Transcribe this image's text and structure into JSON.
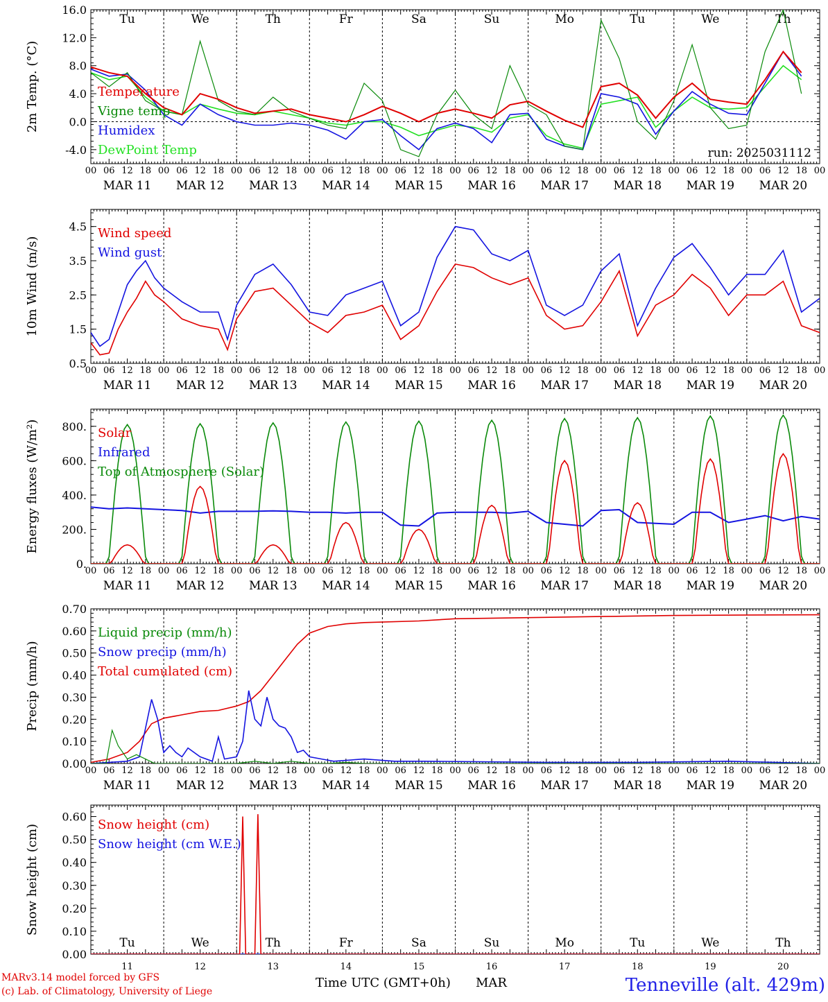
{
  "footer": {
    "model": "MARv3.14 model forced by GFS",
    "lab": "(c) Lab. of Climatology, University of Liege",
    "xlabel": "Time UTC (GMT+0h)",
    "month": "MAR",
    "station": "Tenneville (alt. 429m)"
  },
  "colors": {
    "red": "#e00000",
    "green": "#0a8a0a",
    "blue": "#1414e0",
    "lightgreen": "#22e022",
    "weekend": "#e00000"
  },
  "days": {
    "weekdays": [
      "Tu",
      "We",
      "Th",
      "Fr",
      "Sa",
      "Su",
      "Mo",
      "Tu",
      "We",
      "Th"
    ],
    "dates": [
      "MAR 11",
      "MAR 12",
      "MAR 13",
      "MAR 14",
      "MAR 15",
      "MAR 16",
      "MAR 17",
      "MAR 18",
      "MAR 19",
      "MAR 20"
    ],
    "numbers": [
      "11",
      "12",
      "13",
      "14",
      "15",
      "16",
      "17",
      "18",
      "19",
      "20"
    ],
    "weekend_days": [
      "Sa",
      "Su"
    ],
    "hour_ticks": [
      "00",
      "06",
      "12",
      "18"
    ],
    "final_tick": "00"
  },
  "chart_data": [
    {
      "id": "temp",
      "type": "line",
      "ylabel": "2m Temp. (°C)",
      "ylim": [
        -6,
        16
      ],
      "yticks": [
        -4,
        0,
        4,
        8,
        12,
        16
      ],
      "ytick_labels": [
        "-4.0",
        "0.0",
        "4.0",
        "8.0",
        "12.0",
        "16.0"
      ],
      "zero_line": true,
      "annotation": "run: 2025031112",
      "x_unit": "hours since MAR 11 00 UTC",
      "series": [
        {
          "name": "Temperature",
          "color": "red",
          "x": [
            0,
            6,
            12,
            18,
            24,
            30,
            36,
            42,
            48,
            54,
            60,
            66,
            72,
            78,
            84,
            90,
            96,
            102,
            108,
            114,
            120,
            126,
            132,
            138,
            144,
            150,
            156,
            162,
            168,
            174,
            180,
            186,
            192,
            198,
            204,
            210,
            216,
            222,
            228,
            234
          ],
          "y": [
            7.8,
            7.0,
            6.5,
            4.0,
            2.0,
            1.0,
            4.0,
            3.2,
            2.0,
            1.2,
            1.5,
            1.8,
            1.0,
            0.5,
            0.0,
            1.0,
            2.2,
            1.2,
            0.0,
            1.2,
            1.8,
            1.2,
            0.5,
            2.4,
            2.9,
            1.5,
            0.2,
            -0.8,
            5.0,
            5.5,
            3.8,
            0.5,
            3.5,
            5.5,
            3.2,
            2.8,
            2.5,
            6.0,
            10.0,
            7.0
          ]
        },
        {
          "name": "Vigne temp",
          "color": "green",
          "x": [
            0,
            6,
            12,
            18,
            24,
            30,
            36,
            42,
            48,
            54,
            60,
            66,
            72,
            78,
            84,
            90,
            96,
            102,
            108,
            114,
            120,
            126,
            132,
            138,
            144,
            150,
            156,
            162,
            168,
            174,
            180,
            186,
            192,
            198,
            204,
            210,
            216,
            222,
            228,
            234
          ],
          "y": [
            7.0,
            5.0,
            7.0,
            3.0,
            1.5,
            1.0,
            11.5,
            3.0,
            1.5,
            1.0,
            3.5,
            1.5,
            0.5,
            -0.5,
            -1.0,
            5.5,
            3.0,
            -4.0,
            -5.0,
            1.0,
            4.5,
            1.0,
            -1.0,
            8.0,
            2.5,
            1.0,
            -3.5,
            -4.0,
            14.5,
            9.0,
            0.0,
            -2.5,
            3.0,
            11.0,
            2.0,
            -1.0,
            -0.5,
            10.0,
            16.0,
            4.0
          ]
        },
        {
          "name": "Humidex",
          "color": "blue",
          "x": [
            0,
            6,
            12,
            18,
            24,
            30,
            36,
            42,
            48,
            54,
            60,
            66,
            72,
            78,
            84,
            90,
            96,
            102,
            108,
            114,
            120,
            126,
            132,
            138,
            144,
            150,
            156,
            162,
            168,
            174,
            180,
            186,
            192,
            198,
            204,
            210,
            216,
            222,
            228,
            234
          ],
          "y": [
            7.5,
            6.5,
            6.8,
            4.5,
            1.0,
            -0.5,
            2.5,
            1.0,
            0.0,
            -0.5,
            -0.5,
            -0.2,
            -0.5,
            -1.2,
            -2.5,
            0.0,
            0.3,
            -2.0,
            -4.0,
            -1.0,
            -0.2,
            -1.0,
            -3.0,
            1.0,
            1.2,
            -2.5,
            -3.5,
            -4.0,
            4.0,
            3.5,
            2.5,
            -1.8,
            1.5,
            4.3,
            2.5,
            1.2,
            1.0,
            5.5,
            10.0,
            6.5
          ]
        },
        {
          "name": "DewPoint Temp",
          "color": "lightgreen",
          "x": [
            0,
            6,
            12,
            18,
            24,
            30,
            36,
            42,
            48,
            54,
            60,
            66,
            72,
            78,
            84,
            90,
            96,
            102,
            108,
            114,
            120,
            126,
            132,
            138,
            144,
            150,
            156,
            162,
            168,
            174,
            180,
            186,
            192,
            198,
            204,
            210,
            216,
            222,
            228,
            234
          ],
          "y": [
            7.0,
            6.0,
            6.5,
            3.5,
            1.5,
            1.0,
            2.5,
            1.8,
            1.2,
            1.0,
            1.5,
            1.0,
            0.5,
            -0.2,
            -0.5,
            0.0,
            0.0,
            -0.8,
            -2.0,
            -1.2,
            -0.5,
            -0.8,
            -1.5,
            0.5,
            1.0,
            -2.0,
            -3.2,
            -3.8,
            2.5,
            3.0,
            3.5,
            -0.8,
            1.5,
            3.5,
            2.0,
            1.8,
            2.0,
            5.0,
            8.0,
            6.0
          ]
        }
      ]
    },
    {
      "id": "wind",
      "type": "line",
      "ylabel": "10m Wind (m/s)",
      "ylim": [
        0.5,
        5.0
      ],
      "yticks": [
        0.5,
        1.5,
        2.5,
        3.5,
        4.5
      ],
      "ytick_labels": [
        "0.5",
        "1.5",
        "2.5",
        "3.5",
        "4.5"
      ],
      "x_unit": "hours since MAR 11 00 UTC",
      "series": [
        {
          "name": "Wind speed",
          "color": "red",
          "x": [
            0,
            3,
            6,
            9,
            12,
            15,
            18,
            21,
            24,
            30,
            36,
            42,
            45,
            48,
            54,
            60,
            66,
            72,
            78,
            84,
            90,
            96,
            102,
            108,
            114,
            120,
            126,
            132,
            138,
            144,
            150,
            156,
            162,
            168,
            174,
            180,
            186,
            192,
            198,
            204,
            210,
            216,
            222,
            228,
            234,
            240
          ],
          "y": [
            1.1,
            0.75,
            0.8,
            1.5,
            2.0,
            2.4,
            2.9,
            2.5,
            2.3,
            1.8,
            1.6,
            1.5,
            0.9,
            1.8,
            2.6,
            2.7,
            2.2,
            1.7,
            1.4,
            1.9,
            2.0,
            2.2,
            1.2,
            1.6,
            2.6,
            3.4,
            3.3,
            3.0,
            2.8,
            3.0,
            1.9,
            1.5,
            1.6,
            2.3,
            3.2,
            1.3,
            2.2,
            2.5,
            3.1,
            2.7,
            1.9,
            2.5,
            2.5,
            2.9,
            1.6,
            1.4
          ]
        },
        {
          "name": "Wind gust",
          "color": "blue",
          "x": [
            0,
            3,
            6,
            9,
            12,
            15,
            18,
            21,
            24,
            30,
            36,
            42,
            45,
            48,
            54,
            60,
            66,
            72,
            78,
            84,
            90,
            96,
            102,
            108,
            114,
            120,
            126,
            132,
            138,
            144,
            150,
            156,
            162,
            168,
            174,
            180,
            186,
            192,
            198,
            204,
            210,
            216,
            222,
            228,
            234,
            240
          ],
          "y": [
            1.4,
            1.0,
            1.2,
            2.0,
            2.8,
            3.2,
            3.5,
            3.0,
            2.7,
            2.3,
            2.0,
            2.0,
            1.2,
            2.2,
            3.1,
            3.4,
            2.8,
            2.0,
            1.9,
            2.5,
            2.7,
            2.9,
            1.6,
            2.0,
            3.6,
            4.5,
            4.4,
            3.7,
            3.5,
            3.8,
            2.2,
            1.9,
            2.2,
            3.2,
            3.7,
            1.6,
            2.7,
            3.6,
            4.0,
            3.3,
            2.5,
            3.1,
            3.1,
            3.8,
            2.0,
            2.4
          ]
        }
      ]
    },
    {
      "id": "energy",
      "type": "line",
      "ylabel": "Energy fluxes (W/m²)",
      "ylim": [
        0,
        900
      ],
      "yticks": [
        0,
        200,
        400,
        600,
        800
      ],
      "ytick_labels": [
        "0.",
        "200.",
        "400.",
        "600.",
        "800."
      ],
      "x_unit": "hours since MAR 11 00 UTC",
      "series": [
        {
          "name": "Solar",
          "color": "red",
          "solar_peaks": [
            110,
            450,
            110,
            240,
            200,
            340,
            600,
            355,
            610,
            640
          ]
        },
        {
          "name": "Infrared",
          "color": "blue",
          "x": [
            0,
            6,
            12,
            18,
            24,
            30,
            36,
            42,
            48,
            54,
            60,
            66,
            72,
            78,
            84,
            90,
            96,
            102,
            108,
            114,
            120,
            126,
            132,
            138,
            144,
            150,
            156,
            162,
            168,
            174,
            180,
            186,
            192,
            198,
            204,
            210,
            216,
            222,
            228,
            234,
            240
          ],
          "y": [
            330,
            320,
            325,
            320,
            315,
            310,
            295,
            305,
            305,
            305,
            308,
            305,
            300,
            300,
            295,
            300,
            300,
            225,
            220,
            295,
            300,
            300,
            300,
            295,
            305,
            240,
            230,
            220,
            310,
            315,
            240,
            235,
            230,
            300,
            300,
            240,
            260,
            280,
            250,
            275,
            260
          ]
        },
        {
          "name": "Top of Atmosphere (Solar)",
          "color": "green",
          "toa_peaks": [
            810,
            815,
            820,
            825,
            830,
            835,
            845,
            850,
            860,
            865
          ]
        }
      ]
    },
    {
      "id": "precip",
      "type": "line",
      "ylabel": "Precip (mm/h)",
      "ylim": [
        0,
        0.7
      ],
      "yticks": [
        0,
        0.1,
        0.2,
        0.3,
        0.4,
        0.5,
        0.6,
        0.7
      ],
      "ytick_labels": [
        "0.00",
        "0.10",
        "0.20",
        "0.30",
        "0.40",
        "0.50",
        "0.60",
        "0.70"
      ],
      "x_unit": "hours since MAR 11 00 UTC",
      "series": [
        {
          "name": "Liquid precip (mm/h)",
          "color": "green",
          "x": [
            0,
            5,
            7,
            9,
            12,
            15,
            18,
            21,
            24,
            30,
            36,
            42,
            48,
            54,
            60,
            66,
            72,
            78,
            84,
            90,
            96,
            150,
            210,
            240
          ],
          "y": [
            0,
            0,
            0.15,
            0.08,
            0.02,
            0.04,
            0.02,
            0,
            0,
            0,
            0,
            0,
            0,
            0.01,
            0,
            0.01,
            0,
            0,
            0.005,
            0,
            0,
            0,
            0,
            0
          ]
        },
        {
          "name": "Snow precip (mm/h)",
          "color": "blue",
          "x": [
            0,
            12,
            16,
            20,
            22,
            24,
            26,
            28,
            30,
            32,
            36,
            40,
            42,
            44,
            48,
            50,
            52,
            54,
            56,
            58,
            60,
            62,
            64,
            66,
            68,
            70,
            72,
            76,
            80,
            90,
            100,
            110,
            150,
            180,
            210,
            240
          ],
          "y": [
            0,
            0.01,
            0.03,
            0.29,
            0.2,
            0.05,
            0.08,
            0.05,
            0.03,
            0.07,
            0.03,
            0.01,
            0.12,
            0.02,
            0.03,
            0.1,
            0.33,
            0.2,
            0.17,
            0.3,
            0.2,
            0.17,
            0.16,
            0.12,
            0.05,
            0.06,
            0.03,
            0.02,
            0.01,
            0.02,
            0.01,
            0.01,
            0.005,
            0.005,
            0.01,
            0
          ]
        },
        {
          "name": "Total cumulated (cm)",
          "color": "red",
          "x": [
            0,
            6,
            12,
            16,
            20,
            24,
            30,
            36,
            42,
            48,
            52,
            56,
            60,
            64,
            68,
            72,
            78,
            84,
            90,
            96,
            108,
            120,
            144,
            168,
            192,
            216,
            240
          ],
          "y": [
            0.005,
            0.02,
            0.05,
            0.1,
            0.18,
            0.205,
            0.22,
            0.235,
            0.24,
            0.26,
            0.28,
            0.33,
            0.4,
            0.47,
            0.54,
            0.59,
            0.62,
            0.632,
            0.638,
            0.64,
            0.645,
            0.655,
            0.66,
            0.665,
            0.67,
            0.672,
            0.673
          ]
        }
      ]
    },
    {
      "id": "snow",
      "type": "line",
      "ylabel": "Snow height (cm)",
      "ylim": [
        0,
        0.65
      ],
      "yticks": [
        0,
        0.1,
        0.2,
        0.3,
        0.4,
        0.5,
        0.6
      ],
      "ytick_labels": [
        "0.00",
        "0.10",
        "0.20",
        "0.30",
        "0.40",
        "0.50",
        "0.60"
      ],
      "x_unit": "hours since MAR 11 00 UTC",
      "series": [
        {
          "name": "Snow height (cm)",
          "color": "red",
          "x": [
            0,
            49,
            50,
            51,
            52,
            53,
            54,
            55,
            56,
            240
          ],
          "y": [
            0,
            0,
            0.6,
            0,
            0,
            0,
            0,
            0.61,
            0,
            0
          ]
        },
        {
          "name": "Snow height (cm W.E.)",
          "color": "blue",
          "x": [
            0,
            240
          ],
          "y": [
            0,
            0
          ]
        }
      ]
    }
  ]
}
